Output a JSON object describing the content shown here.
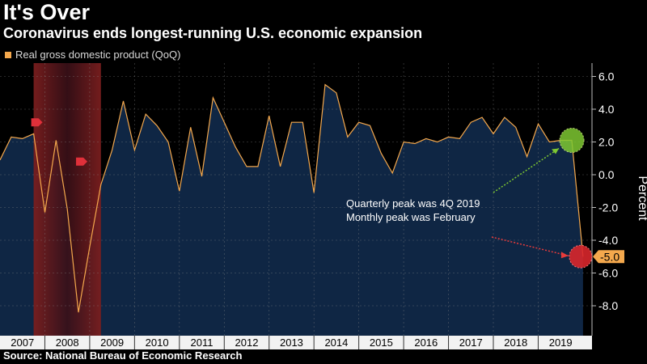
{
  "title": "It's Over",
  "subtitle": "Coronavirus ends longest-running U.S. economic expansion",
  "source": "Source: National Bureau of Economic Research",
  "colors": {
    "line": "#f4a84d",
    "area": "#0f2644",
    "recession": "#7a1e1e",
    "peak_marker": "#7ec832",
    "trough_marker": "#d9262c",
    "value_label_bg": "#f4a84d"
  },
  "chart_data": {
    "type": "area",
    "title": "It's Over",
    "ylabel": "Percent",
    "ylim": [
      -10,
      7
    ],
    "yticks": [
      6.0,
      4.0,
      2.0,
      0.0,
      -2.0,
      -4.0,
      -6.0,
      -8.0
    ],
    "ytick_labels": [
      "6.0",
      "4.0",
      "2.0",
      "0.0",
      "-2.0",
      "-4.0",
      "-6.0",
      "-8.0"
    ],
    "xlim": [
      2007.0,
      2020.2
    ],
    "x_tick_labels": [
      "2007",
      "2008",
      "2009",
      "2010",
      "2011",
      "2012",
      "2013",
      "2014",
      "2015",
      "2016",
      "2017",
      "2018",
      "2019"
    ],
    "legend": "Real gross domestic product (QoQ)",
    "recession": {
      "start": 2007.75,
      "end": 2009.25
    },
    "series": [
      {
        "name": "Real gross domestic product (QoQ)",
        "x": [
          2007.0,
          2007.25,
          2007.5,
          2007.75,
          2008.0,
          2008.25,
          2008.5,
          2008.75,
          2009.0,
          2009.25,
          2009.5,
          2009.75,
          2010.0,
          2010.25,
          2010.5,
          2010.75,
          2011.0,
          2011.25,
          2011.5,
          2011.75,
          2012.0,
          2012.25,
          2012.5,
          2012.75,
          2013.0,
          2013.25,
          2013.5,
          2013.75,
          2014.0,
          2014.25,
          2014.5,
          2014.75,
          2015.0,
          2015.25,
          2015.5,
          2015.75,
          2016.0,
          2016.25,
          2016.5,
          2016.75,
          2017.0,
          2017.25,
          2017.5,
          2017.75,
          2018.0,
          2018.25,
          2018.5,
          2018.75,
          2019.0,
          2019.25,
          2019.5,
          2019.75,
          2020.0
        ],
        "values": [
          0.9,
          2.3,
          2.2,
          2.5,
          -2.3,
          2.1,
          -2.1,
          -8.4,
          -4.4,
          -0.6,
          1.5,
          4.5,
          1.5,
          3.7,
          3.0,
          2.0,
          -1.0,
          2.9,
          -0.1,
          4.7,
          3.2,
          1.7,
          0.5,
          0.5,
          3.6,
          0.5,
          3.2,
          3.2,
          -1.1,
          5.5,
          5.0,
          2.3,
          3.2,
          3.0,
          1.3,
          0.1,
          2.0,
          1.9,
          2.2,
          2.0,
          2.3,
          2.2,
          3.2,
          3.5,
          2.5,
          3.5,
          2.9,
          1.1,
          3.1,
          2.0,
          2.1,
          2.1,
          -5.0
        ]
      }
    ],
    "annotations": [
      {
        "text": "Quarterly peak was 4Q 2019",
        "x": 2019.75,
        "y": 2.1
      },
      {
        "text": "Monthly peak was February",
        "x": 2019.75,
        "y": 2.1
      },
      {
        "text": "-5.0",
        "x": 2020.0,
        "y": -5.0
      }
    ],
    "prior_peaks": [
      {
        "x": 2007.75,
        "y": 3.2
      },
      {
        "x": 2008.75,
        "y": 0.8
      }
    ]
  }
}
